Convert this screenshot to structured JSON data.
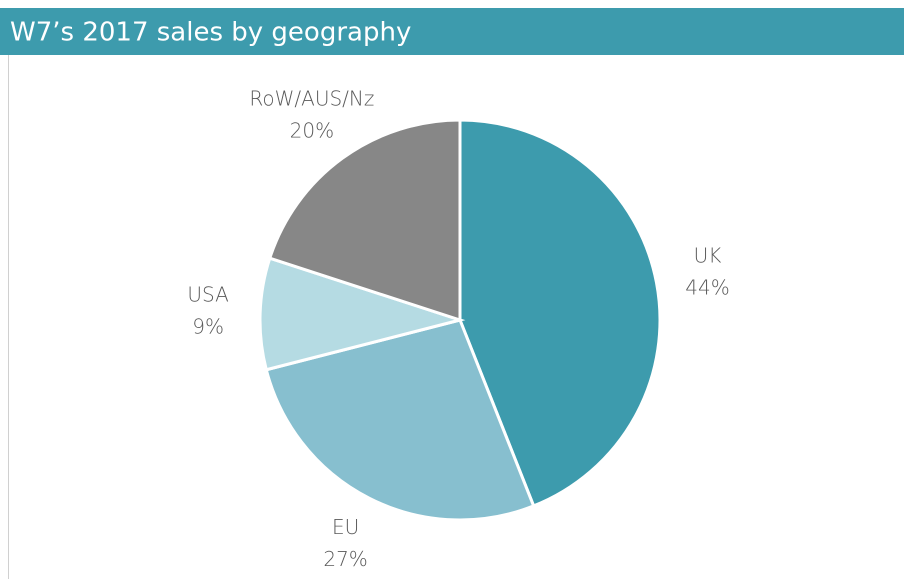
{
  "chart_data": {
    "type": "pie",
    "title": "W7’s 2017 sales by geography",
    "categories": [
      "UK",
      "EU",
      "USA",
      "RoW/AUS/Nz"
    ],
    "values": [
      44,
      27,
      9,
      20
    ],
    "value_labels": [
      "44%",
      "27%",
      "9%",
      "20%"
    ],
    "colors": [
      "#3d9bad",
      "#87bfcf",
      "#b5dbe3",
      "#878787"
    ]
  }
}
